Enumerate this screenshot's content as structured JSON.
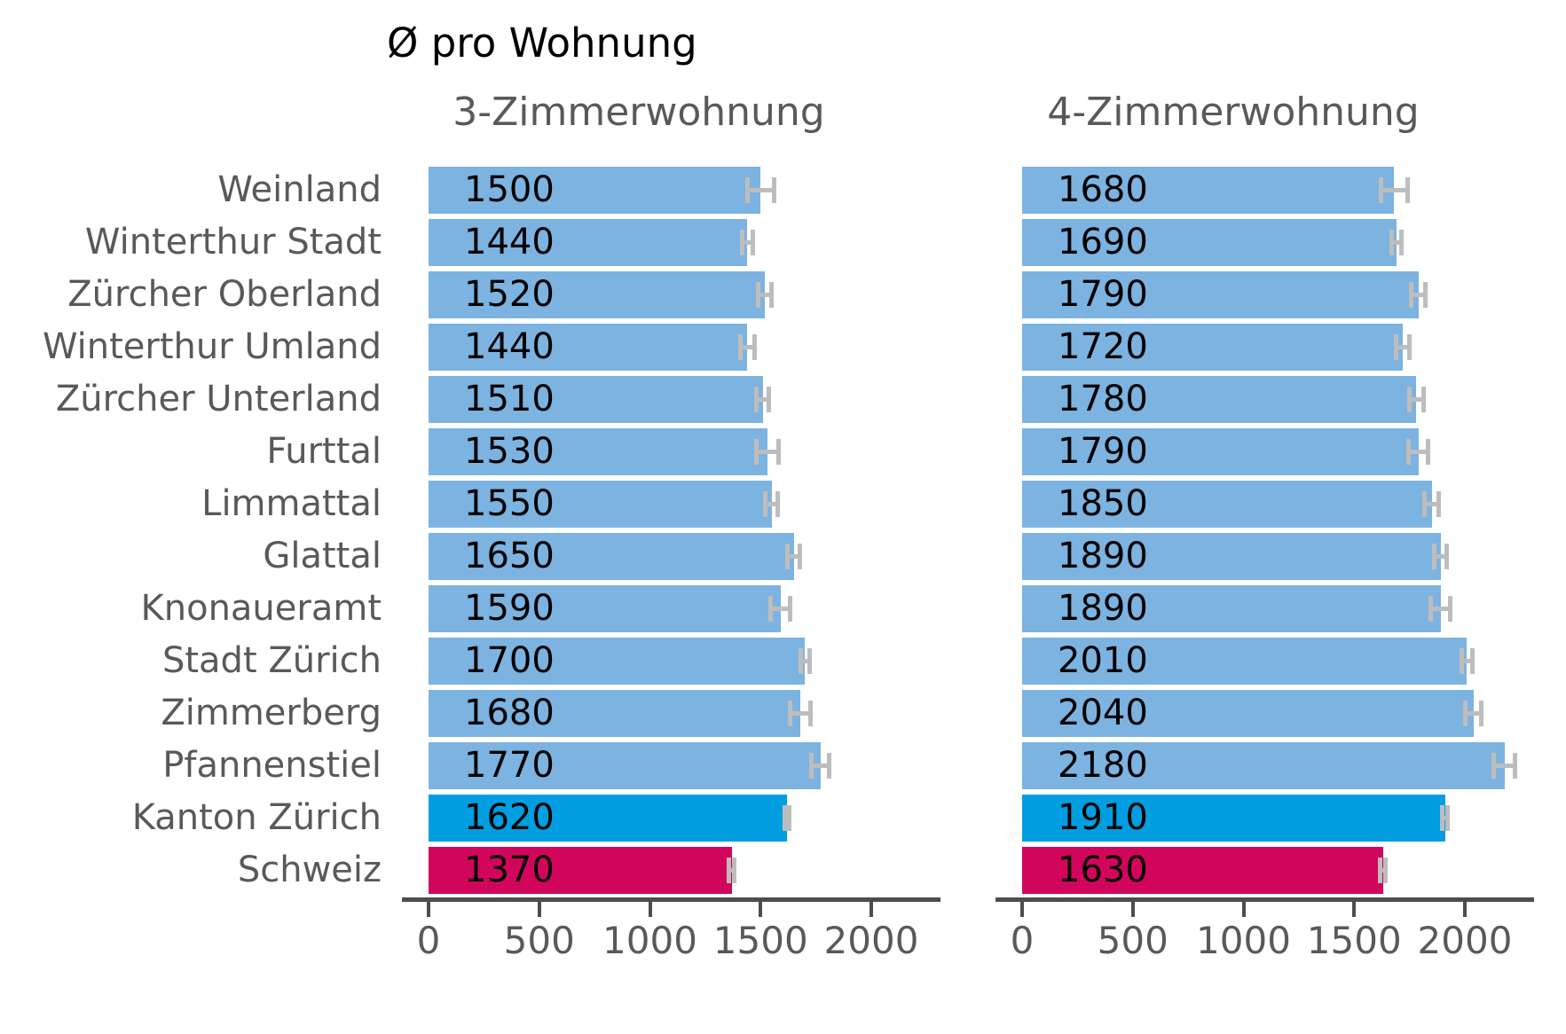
{
  "title": "Ø pro Wohnung",
  "chart_data": {
    "type": "bar",
    "orientation": "horizontal",
    "title": "Ø pro Wohnung",
    "categories": [
      "Weinland",
      "Winterthur Stadt",
      "Zürcher Oberland",
      "Winterthur Umland",
      "Zürcher Unterland",
      "Furttal",
      "Limmattal",
      "Glattal",
      "Knonaueramt",
      "Stadt Zürich",
      "Zimmerberg",
      "Pfannenstiel",
      "Kanton Zürich",
      "Schweiz"
    ],
    "series": [
      {
        "name": "3-Zimmerwohnung",
        "values": [
          1500,
          1440,
          1520,
          1440,
          1510,
          1530,
          1550,
          1650,
          1590,
          1700,
          1680,
          1770,
          1620,
          1370
        ],
        "error_halfwidth": [
          60,
          25,
          30,
          32,
          28,
          50,
          28,
          28,
          45,
          20,
          45,
          40,
          10,
          12
        ]
      },
      {
        "name": "4-Zimmerwohnung",
        "values": [
          1680,
          1690,
          1790,
          1720,
          1780,
          1790,
          1850,
          1890,
          1890,
          2010,
          2040,
          2180,
          1910,
          1630
        ],
        "error_halfwidth": [
          60,
          22,
          32,
          30,
          32,
          45,
          32,
          28,
          45,
          25,
          36,
          48,
          12,
          12
        ]
      }
    ],
    "xticks": [
      "0",
      "500",
      "1000",
      "1500",
      "2000"
    ],
    "xtick_values": [
      0,
      500,
      1000,
      1500,
      2000
    ],
    "xlim": [
      0,
      2313
    ],
    "grid": false,
    "legend_position": "none",
    "category_styles": [
      "default",
      "default",
      "default",
      "default",
      "default",
      "default",
      "default",
      "default",
      "default",
      "default",
      "default",
      "default",
      "kanton",
      "schweiz"
    ],
    "colors": {
      "bar_default": "#7cb3e1",
      "bar_kanton": "#009ee0",
      "bar_schweiz": "#d2055c",
      "error_bar": "#bdbdbd",
      "axis": "#4d4d4d",
      "text_gray": "#595959",
      "value_text": "#000000"
    }
  }
}
